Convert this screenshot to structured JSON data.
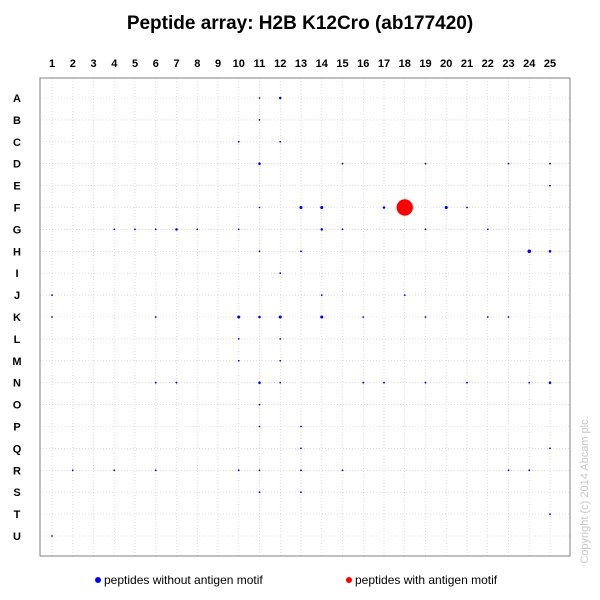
{
  "chart_data": {
    "type": "scatter",
    "title": "Peptide array:  H2B K12Cro (ab177420)",
    "columns": [
      "1",
      "2",
      "3",
      "4",
      "5",
      "6",
      "7",
      "8",
      "9",
      "10",
      "11",
      "12",
      "13",
      "14",
      "15",
      "16",
      "17",
      "18",
      "19",
      "20",
      "21",
      "22",
      "23",
      "24",
      "25"
    ],
    "rows": [
      "A",
      "B",
      "C",
      "D",
      "E",
      "F",
      "G",
      "H",
      "I",
      "J",
      "K",
      "L",
      "M",
      "N",
      "O",
      "P",
      "Q",
      "R",
      "S",
      "T",
      "U"
    ],
    "grid": true,
    "legend_position": "bottom",
    "series": [
      {
        "name": "peptides without antigen motif",
        "color": "#0000ff",
        "points": [
          {
            "row": "A",
            "col": 11,
            "size": 1
          },
          {
            "row": "A",
            "col": 12,
            "size": 2
          },
          {
            "row": "B",
            "col": 11,
            "size": 1
          },
          {
            "row": "C",
            "col": 10,
            "size": 1
          },
          {
            "row": "C",
            "col": 12,
            "size": 1
          },
          {
            "row": "D",
            "col": 11,
            "size": 2
          },
          {
            "row": "D",
            "col": 15,
            "size": 1
          },
          {
            "row": "D",
            "col": 19,
            "size": 1
          },
          {
            "row": "D",
            "col": 23,
            "size": 1
          },
          {
            "row": "D",
            "col": 25,
            "size": 1
          },
          {
            "row": "E",
            "col": 25,
            "size": 1
          },
          {
            "row": "F",
            "col": 11,
            "size": 1
          },
          {
            "row": "F",
            "col": 13,
            "size": 3
          },
          {
            "row": "F",
            "col": 14,
            "size": 3
          },
          {
            "row": "F",
            "col": 17,
            "size": 2
          },
          {
            "row": "F",
            "col": 20,
            "size": 3
          },
          {
            "row": "F",
            "col": 21,
            "size": 1
          },
          {
            "row": "G",
            "col": 4,
            "size": 1
          },
          {
            "row": "G",
            "col": 5,
            "size": 1
          },
          {
            "row": "G",
            "col": 6,
            "size": 1
          },
          {
            "row": "G",
            "col": 7,
            "size": 2
          },
          {
            "row": "G",
            "col": 8,
            "size": 1
          },
          {
            "row": "G",
            "col": 10,
            "size": 1
          },
          {
            "row": "G",
            "col": 14,
            "size": 2
          },
          {
            "row": "G",
            "col": 15,
            "size": 1
          },
          {
            "row": "G",
            "col": 19,
            "size": 1
          },
          {
            "row": "G",
            "col": 22,
            "size": 1
          },
          {
            "row": "H",
            "col": 11,
            "size": 1
          },
          {
            "row": "H",
            "col": 13,
            "size": 1
          },
          {
            "row": "H",
            "col": 24,
            "size": 4
          },
          {
            "row": "H",
            "col": 25,
            "size": 2
          },
          {
            "row": "I",
            "col": 12,
            "size": 1
          },
          {
            "row": "J",
            "col": 1,
            "size": 1
          },
          {
            "row": "J",
            "col": 14,
            "size": 1
          },
          {
            "row": "J",
            "col": 18,
            "size": 1
          },
          {
            "row": "K",
            "col": 1,
            "size": 1
          },
          {
            "row": "K",
            "col": 6,
            "size": 1
          },
          {
            "row": "K",
            "col": 10,
            "size": 3
          },
          {
            "row": "K",
            "col": 11,
            "size": 2
          },
          {
            "row": "K",
            "col": 12,
            "size": 3
          },
          {
            "row": "K",
            "col": 14,
            "size": 3
          },
          {
            "row": "K",
            "col": 16,
            "size": 1
          },
          {
            "row": "K",
            "col": 19,
            "size": 1
          },
          {
            "row": "K",
            "col": 22,
            "size": 1
          },
          {
            "row": "K",
            "col": 23,
            "size": 1
          },
          {
            "row": "L",
            "col": 10,
            "size": 1
          },
          {
            "row": "L",
            "col": 12,
            "size": 1
          },
          {
            "row": "M",
            "col": 10,
            "size": 1
          },
          {
            "row": "M",
            "col": 12,
            "size": 1
          },
          {
            "row": "N",
            "col": 6,
            "size": 1
          },
          {
            "row": "N",
            "col": 7,
            "size": 1
          },
          {
            "row": "N",
            "col": 11,
            "size": 2
          },
          {
            "row": "N",
            "col": 12,
            "size": 1
          },
          {
            "row": "N",
            "col": 16,
            "size": 1
          },
          {
            "row": "N",
            "col": 17,
            "size": 1
          },
          {
            "row": "N",
            "col": 19,
            "size": 1
          },
          {
            "row": "N",
            "col": 21,
            "size": 1
          },
          {
            "row": "N",
            "col": 24,
            "size": 1
          },
          {
            "row": "N",
            "col": 25,
            "size": 2
          },
          {
            "row": "O",
            "col": 11,
            "size": 1
          },
          {
            "row": "P",
            "col": 11,
            "size": 1
          },
          {
            "row": "P",
            "col": 13,
            "size": 1
          },
          {
            "row": "Q",
            "col": 13,
            "size": 1
          },
          {
            "row": "Q",
            "col": 25,
            "size": 1
          },
          {
            "row": "R",
            "col": 2,
            "size": 1
          },
          {
            "row": "R",
            "col": 4,
            "size": 1
          },
          {
            "row": "R",
            "col": 6,
            "size": 1
          },
          {
            "row": "R",
            "col": 10,
            "size": 1
          },
          {
            "row": "R",
            "col": 11,
            "size": 1
          },
          {
            "row": "R",
            "col": 13,
            "size": 1
          },
          {
            "row": "R",
            "col": 15,
            "size": 1
          },
          {
            "row": "R",
            "col": 23,
            "size": 1
          },
          {
            "row": "R",
            "col": 24,
            "size": 1
          },
          {
            "row": "S",
            "col": 11,
            "size": 1
          },
          {
            "row": "S",
            "col": 13,
            "size": 1
          },
          {
            "row": "T",
            "col": 25,
            "size": 1
          },
          {
            "row": "U",
            "col": 1,
            "size": 1
          }
        ]
      },
      {
        "name": "peptides with antigen motif",
        "color": "#ff0000",
        "points": [
          {
            "row": "F",
            "col": 18,
            "size": 16
          }
        ]
      }
    ]
  },
  "copyright": "Copyright (c) 2014 Abcam plc."
}
